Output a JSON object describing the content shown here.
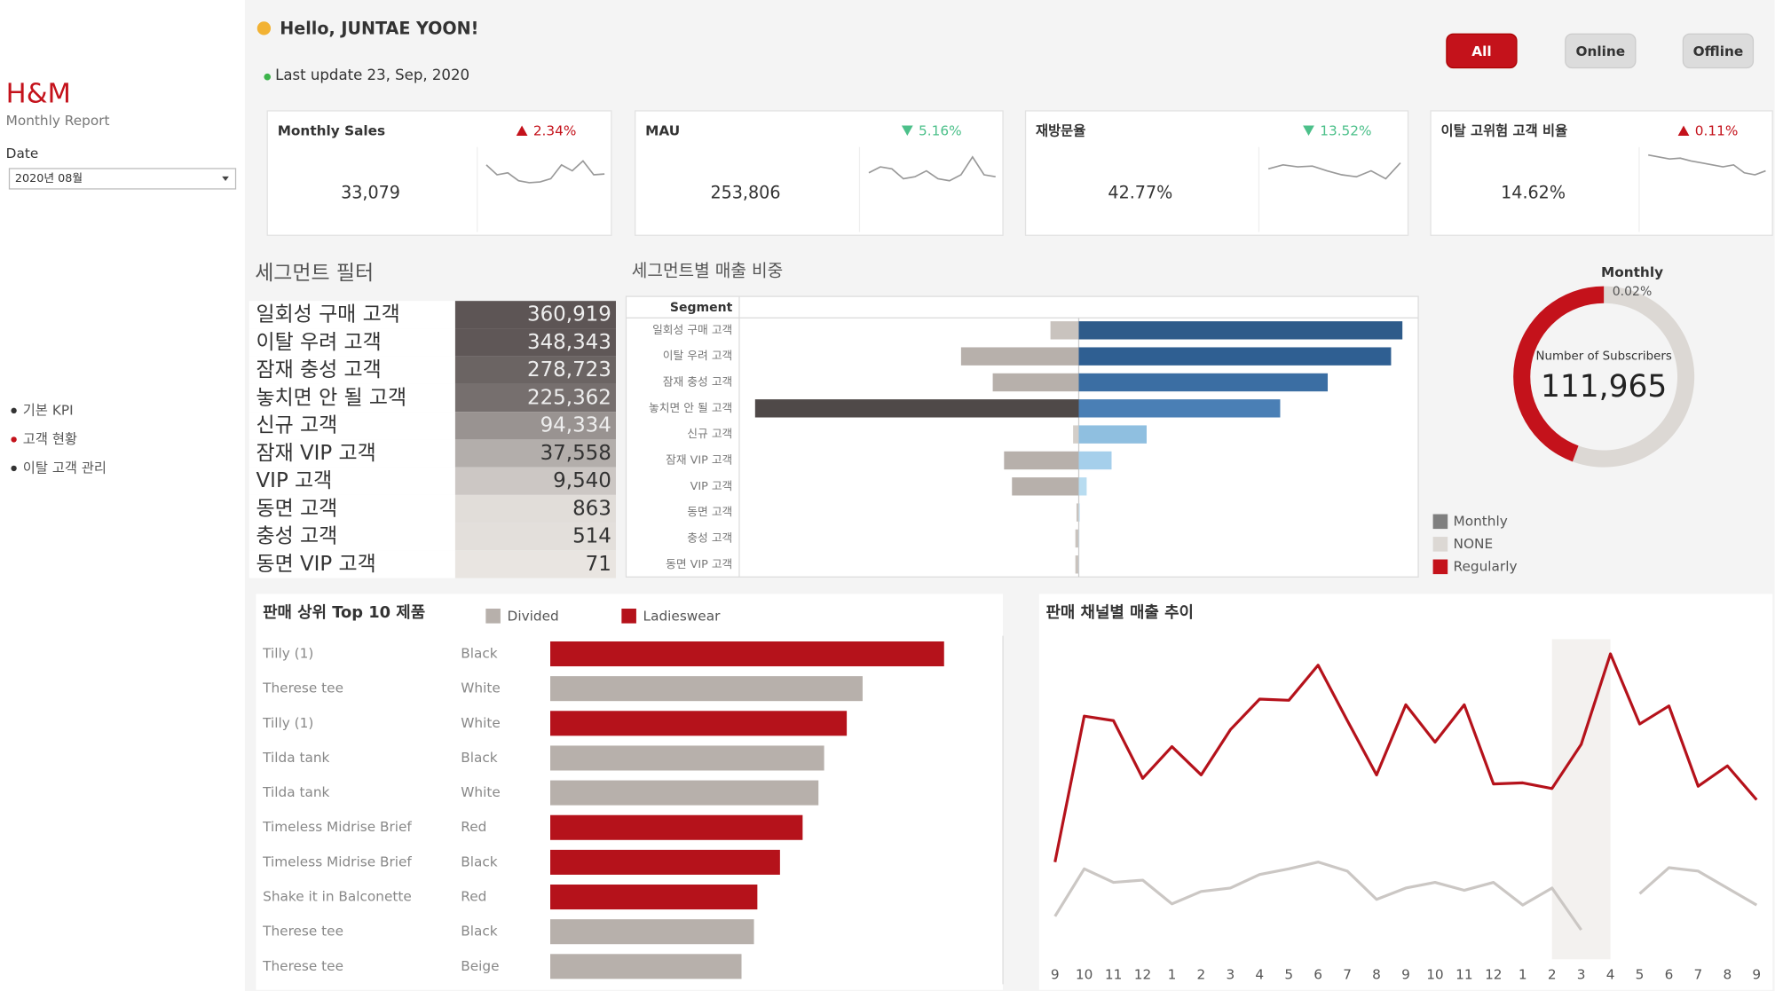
{
  "sidebar": {
    "brand": "H&M",
    "subtitle": "Monthly Report",
    "date_label": "Date",
    "date_value": "2020년 08월",
    "nav": [
      {
        "label": "기본 KPI",
        "active": false
      },
      {
        "label": "고객 현황",
        "active": true
      },
      {
        "label": "이탈 고객 관리",
        "active": false
      }
    ]
  },
  "header": {
    "greeting": "Hello, JUNTAE YOON!",
    "last_update": "Last update 23, Sep, 2020",
    "buttons": [
      {
        "label": "All",
        "active": true
      },
      {
        "label": "Online",
        "active": false
      },
      {
        "label": "Offline",
        "active": false
      }
    ]
  },
  "kpis": {
    "spark_ylim": [
      0,
      100
    ],
    "items": [
      {
        "title": "Monthly Sales",
        "value": "33,079",
        "change": "2.34%",
        "direction": "up",
        "spark": [
          55,
          30,
          35,
          15,
          10,
          12,
          20,
          55,
          40,
          65,
          30,
          32
        ]
      },
      {
        "title": "MAU",
        "value": "253,806",
        "change": "5.16%",
        "direction": "down",
        "spark": [
          35,
          50,
          45,
          20,
          25,
          40,
          20,
          15,
          30,
          75,
          30,
          25
        ]
      },
      {
        "title": "재방문율",
        "value": "42.77%",
        "change": "13.52%",
        "direction": "down",
        "spark": [
          45,
          55,
          50,
          52,
          40,
          30,
          25,
          40,
          20,
          60
        ]
      },
      {
        "title": "이탈 고위험 고객 비율",
        "value": "14.62%",
        "change": "0.11%",
        "direction": "up",
        "spark": [
          80,
          75,
          70,
          72,
          65,
          60,
          55,
          50,
          55,
          35,
          30,
          40
        ]
      }
    ]
  },
  "segment_filter": {
    "title": "세그먼트 필터",
    "names": [
      "일회성 구매 고객",
      "이탈 우려 고객",
      "잠재 충성 고객",
      "놓치면 안 될 고객",
      "신규 고객",
      "잠재 VIP 고객",
      "VIP 고객",
      "동면 고객",
      "충성 고객",
      "동면 VIP 고객"
    ],
    "values": [
      360919,
      348343,
      278723,
      225362,
      94334,
      37558,
      9540,
      863,
      514,
      71
    ],
    "value_labels": [
      "360,919",
      "348,343",
      "278,723",
      "225,362",
      "94,334",
      "37,558",
      "9,540",
      "863",
      "514",
      "71"
    ]
  },
  "chart_data": [
    {
      "type": "diverging_bar",
      "title": "세그먼트별 매출 비중",
      "axis_label": "Segment",
      "categories": [
        "일회성 구매 고객",
        "이탈 우려 고객",
        "잠재 충성 고객",
        "놓치면 안 될 고객",
        "신규 고객",
        "잠재 VIP 고객",
        "VIP 고객",
        "동면 고객",
        "충성 고객",
        "동면 VIP 고객"
      ],
      "xlim": [
        -300,
        300
      ],
      "series": [
        {
          "values": [
            -25,
            -104,
            -76,
            -286,
            -5,
            -66,
            -59,
            -2,
            -3,
            -3
          ],
          "colors": [
            "#c9c3be",
            "#b7b0ab",
            "#b7b0ab",
            "#4f4948",
            "#d3cec9",
            "#b7b0ab",
            "#b7b0ab",
            "#c9c3be",
            "#c9c3be",
            "#c9c3be"
          ]
        },
        {
          "values": [
            286,
            276,
            220,
            178,
            60,
            29,
            7,
            1,
            0.5,
            0.3
          ],
          "colors": [
            "#2e5b8a",
            "#2f5f92",
            "#3b6ea3",
            "#4a7fb5",
            "#8fbfe0",
            "#a5cfeb",
            "#b8dcf0",
            "#c9e3f3",
            "#c9e3f3",
            "#c9e3f3"
          ]
        }
      ]
    },
    {
      "type": "donut",
      "annotation": {
        "label": "Monthly",
        "value_label": "0.02%"
      },
      "center_label": "Number of Subscribers",
      "center_value": "111,965",
      "categories": [
        "Monthly",
        "NONE",
        "Regularly"
      ],
      "values": [
        0.02,
        55.6,
        44.4
      ],
      "colors": [
        "#7f7f7f",
        "#dcd8d4",
        "#c4121b"
      ]
    },
    {
      "type": "hbar",
      "title": "판매 상위 Top 10 제품",
      "legend": [
        {
          "name": "Divided",
          "color": "#b7b0ab"
        },
        {
          "name": "Ladieswear",
          "color": "#b5121b"
        }
      ],
      "categories": [
        "Tilly (1)",
        "Therese tee",
        "Tilly (1)",
        "Tilda tank",
        "Tilda tank",
        "Timeless Midrise Brief",
        "Timeless Midrise Brief",
        "Shake it in Balconette",
        "Therese tee",
        "Therese tee"
      ],
      "product_colors": [
        "Black",
        "White",
        "White",
        "Black",
        "White",
        "Red",
        "Black",
        "Red",
        "Black",
        "Beige"
      ],
      "groups": [
        "Ladieswear",
        "Divided",
        "Ladieswear",
        "Divided",
        "Divided",
        "Ladieswear",
        "Ladieswear",
        "Ladieswear",
        "Divided",
        "Divided"
      ],
      "values": [
        348,
        276,
        262,
        242,
        237,
        223,
        203,
        183,
        180,
        169
      ],
      "xlim": [
        0,
        400
      ]
    },
    {
      "type": "line",
      "title": "판매 채널별 매출 추이",
      "categories": [
        "9",
        "10",
        "11",
        "12",
        "1",
        "2",
        "3",
        "4",
        "5",
        "6",
        "7",
        "8",
        "9",
        "10",
        "11",
        "12",
        "1",
        "2",
        "3",
        "4",
        "5",
        "6",
        "7",
        "8",
        "9"
      ],
      "ylim": [
        0,
        300
      ],
      "highlight": 18,
      "series": [
        {
          "color": "#b5121b",
          "values": [
            88,
            217,
            213,
            162,
            190,
            165,
            205,
            232,
            231,
            262,
            213,
            165,
            227,
            194,
            227,
            157,
            158,
            153,
            192,
            272,
            210,
            226,
            155,
            173,
            143
          ]
        },
        {
          "color": "#cbc7c4",
          "values": [
            40,
            82,
            70,
            72,
            51,
            62,
            65,
            77,
            82,
            88,
            80,
            55,
            65,
            70,
            63,
            70,
            50,
            65,
            28,
            null,
            60,
            83,
            80,
            65,
            50
          ]
        }
      ]
    }
  ]
}
